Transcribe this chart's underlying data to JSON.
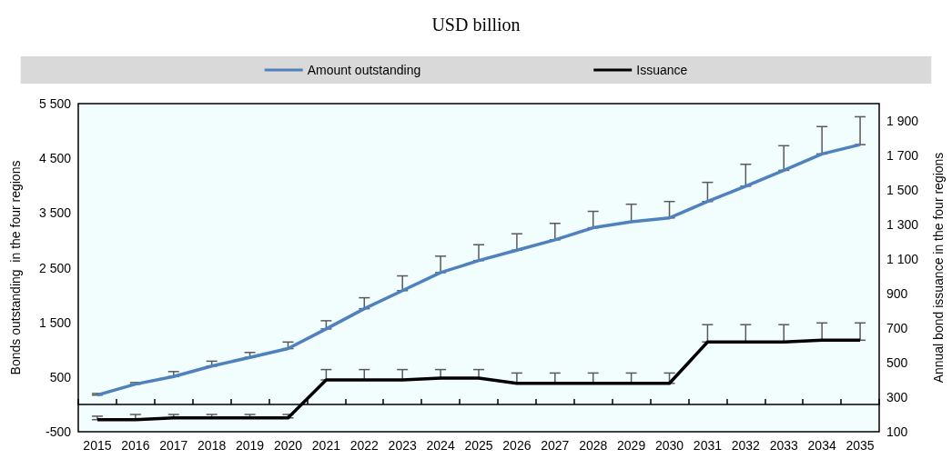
{
  "chart_data": {
    "type": "line",
    "title": "USD billion",
    "ylabel": "Bonds outstanding  in the four regions",
    "y2label": "Annual bond issuance in the four regions",
    "categories": [
      "2015",
      "2016",
      "2017",
      "2018",
      "2019",
      "2020",
      "2021",
      "2022",
      "2023",
      "2024",
      "2025",
      "2026",
      "2027",
      "2028",
      "2029",
      "2030",
      "2031",
      "2032",
      "2033",
      "2034",
      "2035"
    ],
    "series": [
      {
        "name": "Amount outstanding",
        "color": "#4f81bd",
        "values": [
          170,
          370,
          510,
          700,
          860,
          1020,
          1380,
          1750,
          2080,
          2410,
          2630,
          2820,
          3010,
          3230,
          3340,
          3410,
          3710,
          3990,
          4280,
          4580,
          4750
        ],
        "errors": [
          [
            170,
            200
          ],
          [
            370,
            400
          ],
          [
            510,
            600
          ],
          [
            700,
            790
          ],
          [
            860,
            950
          ],
          [
            1020,
            1140
          ],
          [
            1380,
            1530
          ],
          [
            1750,
            1950
          ],
          [
            2080,
            2350
          ],
          [
            2410,
            2710
          ],
          [
            2630,
            2920
          ],
          [
            2820,
            3120
          ],
          [
            3010,
            3310
          ],
          [
            3230,
            3530
          ],
          [
            3340,
            3660
          ],
          [
            3410,
            3710
          ],
          [
            3710,
            4060
          ],
          [
            3990,
            4390
          ],
          [
            4280,
            4730
          ],
          [
            4580,
            5080
          ],
          [
            4750,
            5260
          ]
        ]
      },
      {
        "name": "Issuance",
        "color": "#000000",
        "axis": "y2",
        "values": [
          170,
          170,
          180,
          180,
          180,
          180,
          400,
          400,
          400,
          410,
          410,
          380,
          380,
          380,
          380,
          380,
          620,
          620,
          620,
          630,
          630
        ],
        "errors": [
          [
            170,
            190
          ],
          [
            170,
            200
          ],
          [
            180,
            200
          ],
          [
            180,
            200
          ],
          [
            180,
            200
          ],
          [
            180,
            200
          ],
          [
            400,
            460
          ],
          [
            400,
            460
          ],
          [
            400,
            460
          ],
          [
            410,
            460
          ],
          [
            410,
            460
          ],
          [
            380,
            440
          ],
          [
            380,
            440
          ],
          [
            380,
            440
          ],
          [
            380,
            440
          ],
          [
            380,
            440
          ],
          [
            620,
            720
          ],
          [
            620,
            720
          ],
          [
            620,
            720
          ],
          [
            630,
            730
          ],
          [
            630,
            730
          ]
        ]
      }
    ],
    "ylim": [
      -500,
      5500
    ],
    "yticks": [
      -500,
      500,
      {
        "value": 1500,
        "label": "1 500"
      },
      {
        "value": 2500,
        "label": "2 500"
      },
      {
        "value": 3500,
        "label": "3 500"
      },
      {
        "value": 4500,
        "label": "4 500"
      },
      {
        "value": 5500,
        "label": "5 500"
      }
    ],
    "y2lim": [
      100,
      2000
    ],
    "y2ticks": [
      100,
      300,
      500,
      700,
      900,
      {
        "value": 1100,
        "label": "1 100"
      },
      {
        "value": 1300,
        "label": "1 300"
      },
      {
        "value": 1500,
        "label": "1 500"
      },
      {
        "value": 1700,
        "label": "1 700"
      },
      {
        "value": 1900,
        "label": "1 900"
      }
    ],
    "legend": "top",
    "marker": "none",
    "line_style": "solid"
  }
}
